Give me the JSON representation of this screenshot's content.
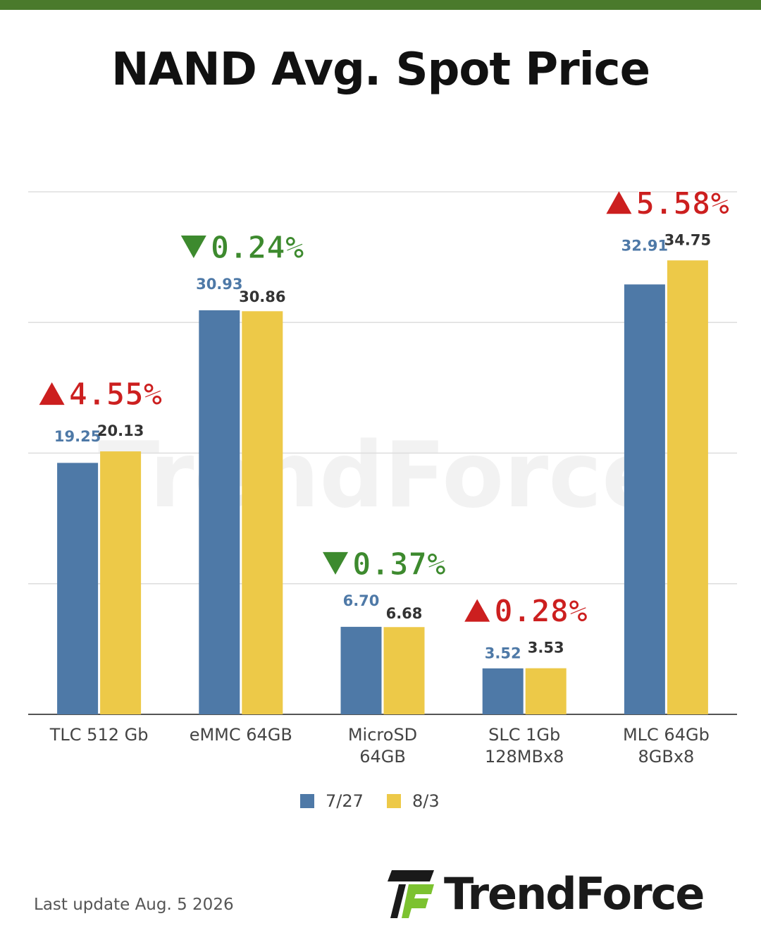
{
  "title": "NAND Avg. Spot Price",
  "colors": {
    "top_bar": "#4a7a2c",
    "series_1": "#4e79a7",
    "series_2": "#edc948",
    "up": "#cc1f1f",
    "down": "#3d8a2e",
    "label_series_1": "#4e79a7",
    "label_series_2": "#333333",
    "grid": "#dddddd",
    "axis": "#555555"
  },
  "chart_data": {
    "type": "bar",
    "categories": [
      [
        "TLC 512 Gb"
      ],
      [
        "eMMC 64GB"
      ],
      [
        "MicroSD",
        "64GB"
      ],
      [
        "SLC 1Gb",
        "128MBx8"
      ],
      [
        "MLC 64Gb",
        "8GBx8"
      ]
    ],
    "series": [
      {
        "name": "7/27",
        "values": [
          19.25,
          30.93,
          6.7,
          3.52,
          32.91
        ],
        "labels": [
          "19.25",
          "30.93",
          "6.70",
          "3.52",
          "32.91"
        ]
      },
      {
        "name": "8/3",
        "values": [
          20.13,
          30.86,
          6.68,
          3.53,
          34.75
        ],
        "labels": [
          "20.13",
          "30.86",
          "6.68",
          "3.53",
          "34.75"
        ]
      }
    ],
    "changes": [
      {
        "text": "4.55%",
        "direction": "up"
      },
      {
        "text": "0.24%",
        "direction": "down"
      },
      {
        "text": "0.37%",
        "direction": "down"
      },
      {
        "text": "0.28%",
        "direction": "up"
      },
      {
        "text": "5.58%",
        "direction": "up"
      }
    ],
    "ylim": [
      0,
      40
    ],
    "gridlines": [
      0,
      10,
      20,
      30,
      40
    ],
    "grid": true,
    "legend": "bottom-center"
  },
  "watermark": "TrendForce",
  "footer": {
    "last_update": "Last update  Aug. 5  2026"
  },
  "logo": {
    "text": "TrendForce"
  }
}
